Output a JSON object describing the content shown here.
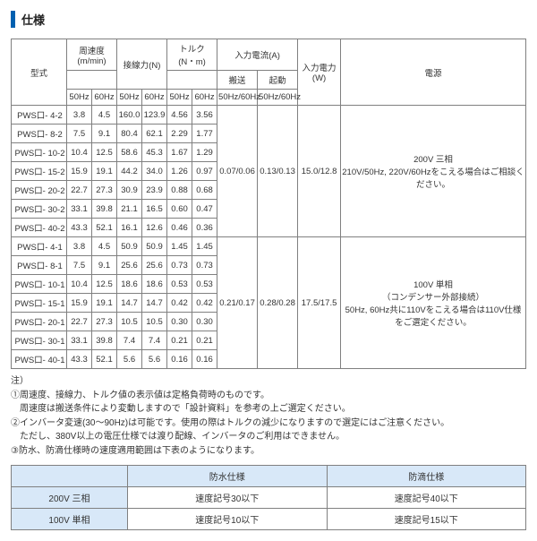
{
  "section_title": "仕様",
  "main_table": {
    "headers": {
      "model": "型式",
      "peripheral_speed": "周速度\n(m/min)",
      "tangential_force": "接線力(N)",
      "torque": "トルク\n(N・m)",
      "input_current": "入力電流(A)",
      "input_power": "入力電力\n(W)",
      "power_source": "電源",
      "conveying": "搬送",
      "starting": "起動",
      "hz50": "50Hz",
      "hz60": "60Hz",
      "hz_pair": "50Hz/60Hz"
    },
    "group1": {
      "current_conveying": "0.07/0.06",
      "current_starting": "0.13/0.13",
      "power": "15.0/12.8",
      "source": "200V 三相\n210V/50Hz, 220V/60Hzをこえる場合はご相談ください。",
      "rows": [
        {
          "model": "PWS口- 4-2",
          "v": [
            "3.8",
            "4.5",
            "160.0",
            "123.9",
            "4.56",
            "3.56"
          ]
        },
        {
          "model": "PWS口- 8-2",
          "v": [
            "7.5",
            "9.1",
            "80.4",
            "62.1",
            "2.29",
            "1.77"
          ]
        },
        {
          "model": "PWS口- 10-2",
          "v": [
            "10.4",
            "12.5",
            "58.6",
            "45.3",
            "1.67",
            "1.29"
          ]
        },
        {
          "model": "PWS口- 15-2",
          "v": [
            "15.9",
            "19.1",
            "44.2",
            "34.0",
            "1.26",
            "0.97"
          ]
        },
        {
          "model": "PWS口- 20-2",
          "v": [
            "22.7",
            "27.3",
            "30.9",
            "23.9",
            "0.88",
            "0.68"
          ]
        },
        {
          "model": "PWS口- 30-2",
          "v": [
            "33.1",
            "39.8",
            "21.1",
            "16.5",
            "0.60",
            "0.47"
          ]
        },
        {
          "model": "PWS口- 40-2",
          "v": [
            "43.3",
            "52.1",
            "16.1",
            "12.6",
            "0.46",
            "0.36"
          ]
        }
      ]
    },
    "group2": {
      "current_conveying": "0.21/0.17",
      "current_starting": "0.28/0.28",
      "power": "17.5/17.5",
      "source": "100V 単相\n（コンデンサー外部接続）\n50Hz, 60Hz共に110Vをこえる場合は110V仕様をご選定ください。",
      "rows": [
        {
          "model": "PWS口- 4-1",
          "v": [
            "3.8",
            "4.5",
            "50.9",
            "50.9",
            "1.45",
            "1.45"
          ]
        },
        {
          "model": "PWS口- 8-1",
          "v": [
            "7.5",
            "9.1",
            "25.6",
            "25.6",
            "0.73",
            "0.73"
          ]
        },
        {
          "model": "PWS口- 10-1",
          "v": [
            "10.4",
            "12.5",
            "18.6",
            "18.6",
            "0.53",
            "0.53"
          ]
        },
        {
          "model": "PWS口- 15-1",
          "v": [
            "15.9",
            "19.1",
            "14.7",
            "14.7",
            "0.42",
            "0.42"
          ]
        },
        {
          "model": "PWS口- 20-1",
          "v": [
            "22.7",
            "27.3",
            "10.5",
            "10.5",
            "0.30",
            "0.30"
          ]
        },
        {
          "model": "PWS口- 30-1",
          "v": [
            "33.1",
            "39.8",
            "7.4",
            "7.4",
            "0.21",
            "0.21"
          ]
        },
        {
          "model": "PWS口- 40-1",
          "v": [
            "43.3",
            "52.1",
            "5.6",
            "5.6",
            "0.16",
            "0.16"
          ]
        }
      ]
    }
  },
  "notes": {
    "label": "注）",
    "lines": [
      "①周速度、接線力、トルク値の表示値は定格負荷時のものです。",
      "　周速度は搬送条件により変動しますので「設計資料」を参考の上ご選定ください。",
      "②インバータ変速(30～90Hz)は可能です。使用の際はトルクの減少になりますので選定にはご注意ください。",
      "　ただし、380V以上の電圧仕様では渡り配線、インバータのご利用はできません。",
      "③防水、防滴仕様時の速度適用範囲は下表のようになります。"
    ]
  },
  "sub_table": {
    "col_waterproof": "防水仕様",
    "col_dripproof": "防滴仕様",
    "rows": [
      {
        "label": "200V 三相",
        "wp": "速度記号30以下",
        "dp": "速度記号40以下"
      },
      {
        "label": "100V 単相",
        "wp": "速度記号10以下",
        "dp": "速度記号15以下"
      }
    ]
  }
}
